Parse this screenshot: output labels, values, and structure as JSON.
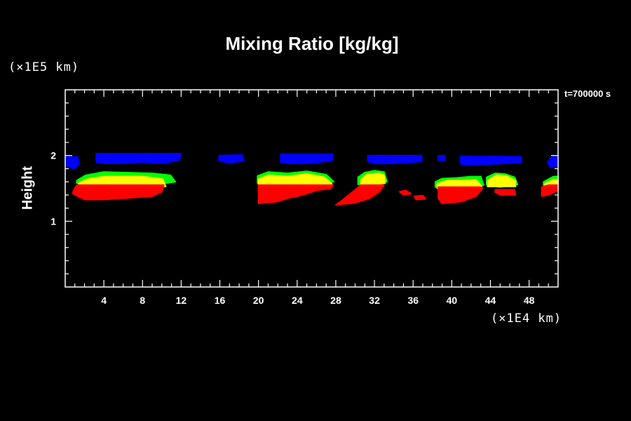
{
  "chart_data": {
    "type": "heatmap",
    "title": "Mixing Ratio [kg/kg]",
    "ylabel": "Height",
    "xunit": "(×1E4 km)",
    "yunit": "(×1E5 km)",
    "time_label": "t=700000 s",
    "xlim": [
      0,
      51
    ],
    "ylim": [
      0,
      3
    ],
    "x_ticks": [
      4,
      8,
      12,
      16,
      20,
      24,
      28,
      32,
      36,
      40,
      44,
      48
    ],
    "y_ticks": [
      1,
      2
    ],
    "colors": {
      "blue": "#0000ff",
      "green": "#00ff00",
      "yellow": "#ffff00",
      "red": "#ff0000",
      "background": "#000000",
      "axis": "#ffffff"
    },
    "regions": [
      {
        "level": "blue",
        "polygons": [
          [
            [
              0,
              1.98
            ],
            [
              1.3,
              1.98
            ],
            [
              1.4,
              1.87
            ],
            [
              0.9,
              1.8
            ],
            [
              0,
              1.85
            ]
          ],
          [
            [
              3.2,
              2.03
            ],
            [
              12,
              2.03
            ],
            [
              11.8,
              1.93
            ],
            [
              10,
              1.88
            ],
            [
              8,
              1.9
            ],
            [
              6,
              1.88
            ],
            [
              4,
              1.88
            ],
            [
              3.2,
              1.9
            ]
          ],
          [
            [
              15.9,
              2.0
            ],
            [
              18.3,
              2.01
            ],
            [
              18.5,
              1.92
            ],
            [
              17,
              1.89
            ],
            [
              15.9,
              1.92
            ]
          ],
          [
            [
              22.3,
              2.02
            ],
            [
              27.7,
              2.02
            ],
            [
              27.6,
              1.92
            ],
            [
              25,
              1.88
            ],
            [
              23,
              1.88
            ],
            [
              22.3,
              1.9
            ]
          ],
          [
            [
              31.3,
              2.0
            ],
            [
              36.9,
              2.0
            ],
            [
              36.9,
              1.91
            ],
            [
              34,
              1.88
            ],
            [
              32,
              1.88
            ],
            [
              31.3,
              1.91
            ]
          ],
          [
            [
              38.6,
              2.0
            ],
            [
              39.3,
              2.0
            ],
            [
              39.3,
              1.93
            ],
            [
              38.6,
              1.93
            ]
          ],
          [
            [
              40.9,
              1.99
            ],
            [
              47.2,
              1.98
            ],
            [
              47.2,
              1.89
            ],
            [
              44,
              1.87
            ],
            [
              41,
              1.86
            ],
            [
              40.9,
              1.9
            ]
          ],
          [
            [
              50.5,
              2.0
            ],
            [
              51,
              2.0
            ],
            [
              51,
              1.85
            ],
            [
              50.2,
              1.82
            ],
            [
              49.9,
              1.9
            ]
          ]
        ]
      },
      {
        "level": "green",
        "polygons": [
          [
            [
              1.2,
              1.62
            ],
            [
              2.1,
              1.7
            ],
            [
              4,
              1.75
            ],
            [
              9,
              1.73
            ],
            [
              10.9,
              1.7
            ],
            [
              11.4,
              1.6
            ],
            [
              10.4,
              1.58
            ],
            [
              1.2,
              1.58
            ]
          ],
          [
            [
              19.9,
              1.69
            ],
            [
              21,
              1.75
            ],
            [
              23,
              1.73
            ],
            [
              25,
              1.76
            ],
            [
              27,
              1.71
            ],
            [
              27.8,
              1.6
            ],
            [
              19.9,
              1.58
            ]
          ],
          [
            [
              30.3,
              1.67
            ],
            [
              31,
              1.74
            ],
            [
              32,
              1.77
            ],
            [
              33,
              1.75
            ],
            [
              33.3,
              1.6
            ],
            [
              30.3,
              1.56
            ]
          ],
          [
            [
              38.3,
              1.6
            ],
            [
              39,
              1.65
            ],
            [
              40.5,
              1.66
            ],
            [
              42,
              1.68
            ],
            [
              43,
              1.68
            ],
            [
              43.3,
              1.55
            ],
            [
              38.3,
              1.52
            ]
          ],
          [
            [
              43.6,
              1.67
            ],
            [
              44.5,
              1.73
            ],
            [
              45.5,
              1.72
            ],
            [
              46.5,
              1.67
            ],
            [
              46.8,
              1.56
            ],
            [
              45,
              1.52
            ],
            [
              43.6,
              1.56
            ]
          ],
          [
            [
              49.5,
              1.6
            ],
            [
              50.5,
              1.68
            ],
            [
              51,
              1.68
            ],
            [
              51,
              1.56
            ],
            [
              49.5,
              1.55
            ]
          ]
        ]
      },
      {
        "level": "yellow",
        "polygons": [
          [
            [
              1.4,
              1.58
            ],
            [
              2.3,
              1.64
            ],
            [
              4,
              1.68
            ],
            [
              8,
              1.68
            ],
            [
              10.1,
              1.64
            ],
            [
              10.4,
              1.53
            ],
            [
              1.4,
              1.52
            ]
          ],
          [
            [
              20,
              1.64
            ],
            [
              21,
              1.7
            ],
            [
              23,
              1.68
            ],
            [
              25,
              1.72
            ],
            [
              26.8,
              1.67
            ],
            [
              27.6,
              1.57
            ],
            [
              20,
              1.55
            ]
          ],
          [
            [
              30.6,
              1.63
            ],
            [
              31.2,
              1.71
            ],
            [
              32.5,
              1.73
            ],
            [
              33,
              1.7
            ],
            [
              33.1,
              1.58
            ],
            [
              30.6,
              1.52
            ]
          ],
          [
            [
              38.5,
              1.57
            ],
            [
              39.5,
              1.62
            ],
            [
              41,
              1.62
            ],
            [
              42.5,
              1.63
            ],
            [
              43.1,
              1.53
            ],
            [
              38.5,
              1.5
            ]
          ],
          [
            [
              43.7,
              1.62
            ],
            [
              44.6,
              1.7
            ],
            [
              45.6,
              1.69
            ],
            [
              46.6,
              1.62
            ],
            [
              46.6,
              1.53
            ],
            [
              43.7,
              1.53
            ]
          ],
          [
            [
              49.6,
              1.57
            ],
            [
              50.5,
              1.63
            ],
            [
              51,
              1.63
            ],
            [
              51,
              1.53
            ],
            [
              49.6,
              1.52
            ]
          ]
        ]
      },
      {
        "level": "red",
        "polygons": [
          [
            [
              0.8,
              1.45
            ],
            [
              1.2,
              1.55
            ],
            [
              10.2,
              1.55
            ],
            [
              10,
              1.45
            ],
            [
              9,
              1.38
            ],
            [
              6,
              1.35
            ],
            [
              4,
              1.33
            ],
            [
              2,
              1.33
            ],
            [
              1.3,
              1.38
            ],
            [
              0.8,
              1.42
            ]
          ],
          [
            [
              20,
              1.55
            ],
            [
              27.7,
              1.55
            ],
            [
              27.5,
              1.5
            ],
            [
              26,
              1.47
            ],
            [
              25,
              1.42
            ],
            [
              24,
              1.38
            ],
            [
              23,
              1.35
            ],
            [
              22,
              1.3
            ],
            [
              20,
              1.27
            ],
            [
              20,
              1.33
            ]
          ],
          [
            [
              28.5,
              1.3
            ],
            [
              30.6,
              1.55
            ],
            [
              33,
              1.55
            ],
            [
              32.5,
              1.45
            ],
            [
              31.5,
              1.35
            ],
            [
              30,
              1.28
            ],
            [
              28,
              1.25
            ]
          ],
          [
            [
              34.6,
              1.45
            ],
            [
              35.2,
              1.47
            ],
            [
              35.8,
              1.42
            ],
            [
              35,
              1.4
            ]
          ],
          [
            [
              36.1,
              1.38
            ],
            [
              37,
              1.39
            ],
            [
              37.3,
              1.34
            ],
            [
              36.3,
              1.33
            ]
          ],
          [
            [
              38.6,
              1.52
            ],
            [
              43,
              1.52
            ],
            [
              43.2,
              1.5
            ],
            [
              42.5,
              1.38
            ],
            [
              41,
              1.3
            ],
            [
              39,
              1.27
            ],
            [
              38.6,
              1.35
            ]
          ],
          [
            [
              44.5,
              1.48
            ],
            [
              46.5,
              1.48
            ],
            [
              46.6,
              1.4
            ],
            [
              45,
              1.4
            ],
            [
              44.5,
              1.44
            ]
          ],
          [
            [
              49.3,
              1.52
            ],
            [
              50,
              1.55
            ],
            [
              51,
              1.55
            ],
            [
              51,
              1.47
            ],
            [
              50,
              1.4
            ],
            [
              49.3,
              1.38
            ]
          ]
        ]
      }
    ]
  }
}
